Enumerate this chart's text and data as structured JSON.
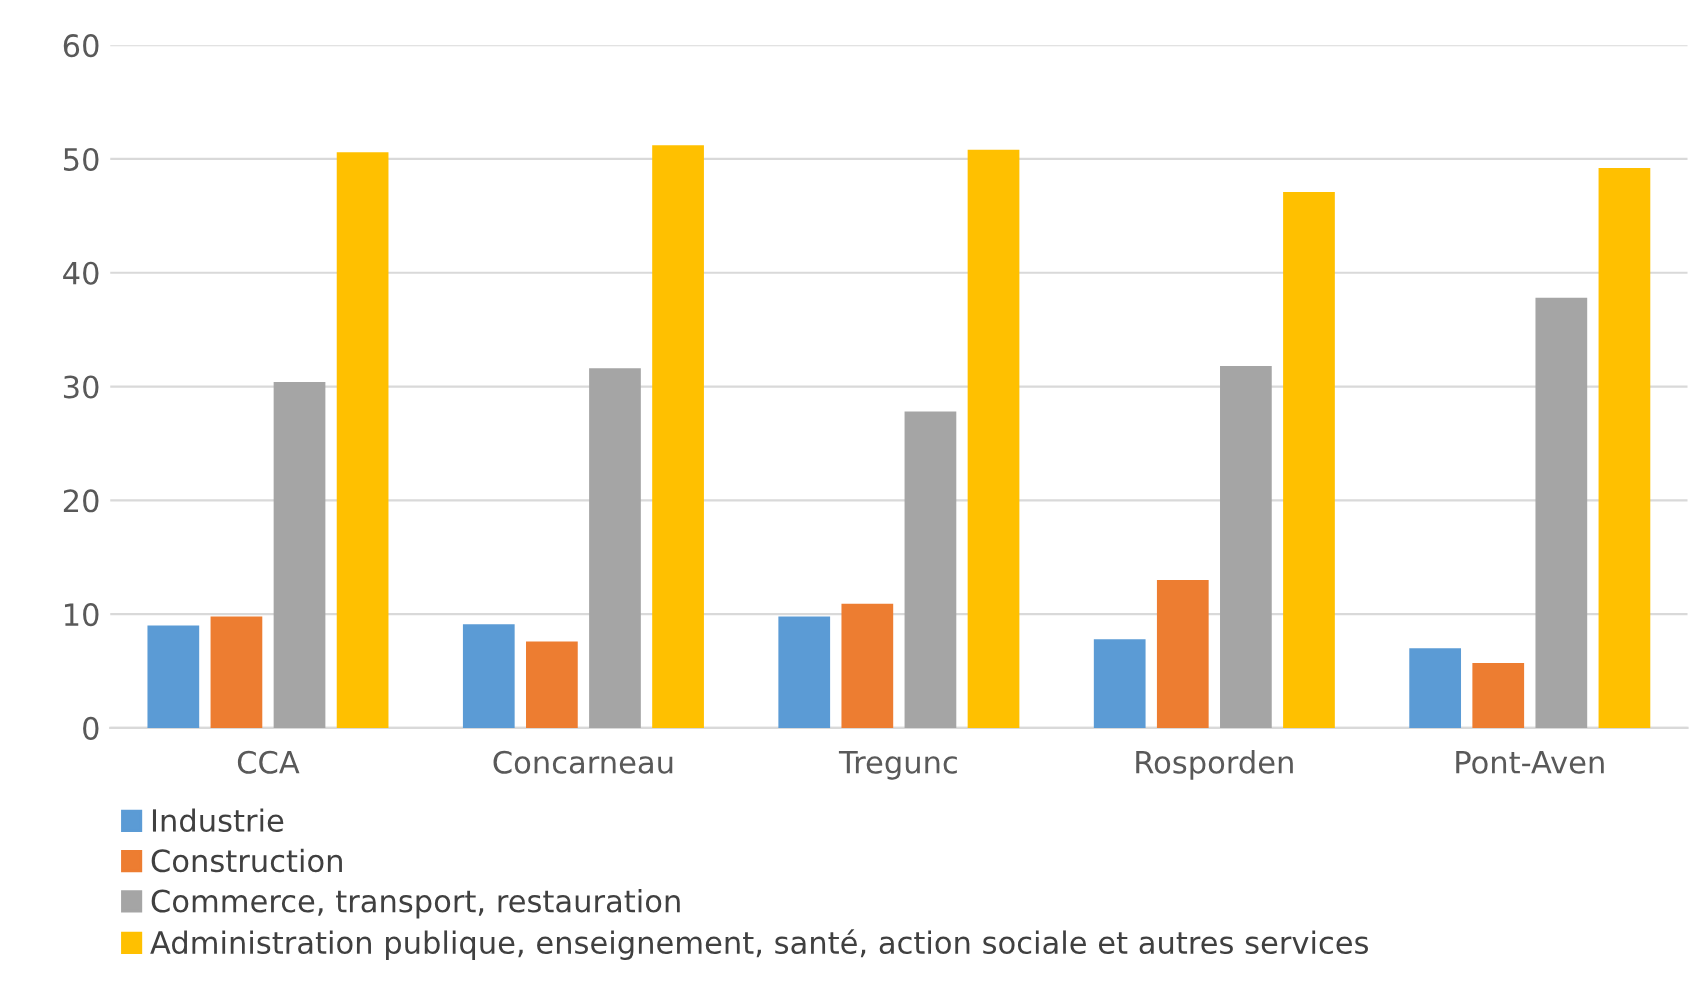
{
  "chart_data": {
    "type": "bar",
    "categories": [
      "CCA",
      "Concarneau",
      "Tregunc",
      "Rosporden",
      "Pont-Aven"
    ],
    "series": [
      {
        "name": "Industrie",
        "color": "#5b9bd5",
        "values": [
          9.0,
          9.1,
          9.8,
          7.8,
          7.0
        ]
      },
      {
        "name": "Construction",
        "color": "#ed7d31",
        "values": [
          9.8,
          7.6,
          10.9,
          13.0,
          5.7
        ]
      },
      {
        "name": "Commerce, transport, restauration",
        "color": "#a5a5a5",
        "values": [
          30.4,
          31.6,
          27.8,
          31.8,
          37.8
        ]
      },
      {
        "name": "Administration publique, enseignement, santé, action sociale et autres services",
        "color": "#ffc000",
        "values": [
          50.6,
          51.2,
          50.8,
          47.1,
          49.2
        ]
      }
    ],
    "ylim": [
      0,
      60
    ],
    "yticks": [
      0,
      10,
      20,
      30,
      40,
      50,
      60
    ],
    "grid": "y",
    "legend": "bottom"
  }
}
